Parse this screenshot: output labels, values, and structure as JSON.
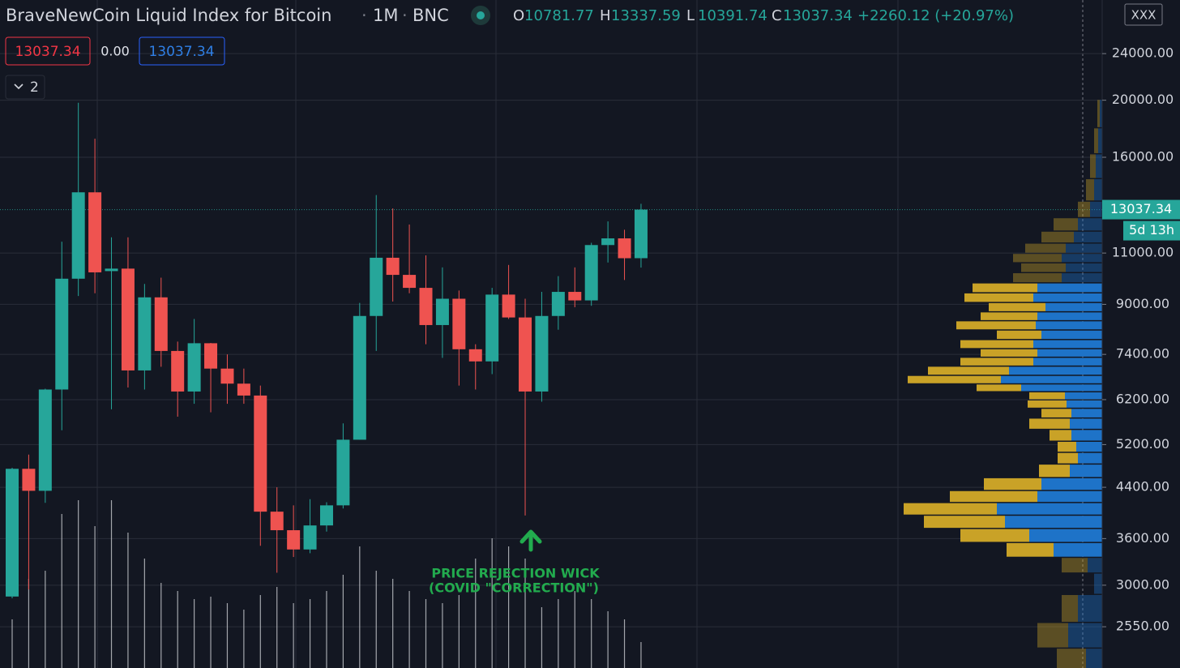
{
  "chart_data": {
    "type": "candlestick",
    "title": "BraveNewCoin Liquid Index for Bitcoin",
    "interval": "1M",
    "exchange": "BNC",
    "ohlc_legend": [
      {
        "label": "O",
        "value": 10781.77
      },
      {
        "label": "H",
        "value": 13337.59
      },
      {
        "label": "L",
        "value": 10391.74
      },
      {
        "label": "C",
        "value": 13037.34
      }
    ],
    "change": "+2260.12 (+20.97%)",
    "inputs": [
      13037.34,
      {
        "value": 0,
        "label": "0.00"
      },
      13037.34
    ],
    "collapsed_count": 2,
    "corner_label": "XXX",
    "last_price": 13037.34,
    "countdown": "5d 13h",
    "annotation": [
      "PRICE REJECTION WICK",
      "(COVID \"CORRECTION\")"
    ],
    "annotation_color": "#22ab4e",
    "yscale": "log",
    "ylim": [
      2170,
      29600
    ],
    "yticks": [
      {
        "value": 24000,
        "label": "24000.00"
      },
      {
        "value": 20000,
        "label": "20000.00"
      },
      {
        "value": 16000,
        "label": "16000.00"
      },
      {
        "value": 11000,
        "label": "11000.00"
      },
      {
        "value": 9000,
        "label": "9000.00"
      },
      {
        "value": 7400,
        "label": "7400.00"
      },
      {
        "value": 6200,
        "label": "6200.00"
      },
      {
        "value": 5200,
        "label": "5200.00"
      },
      {
        "value": 4400,
        "label": "4400.00"
      },
      {
        "value": 3600,
        "label": "3600.00"
      },
      {
        "value": 3000,
        "label": "3000.00"
      },
      {
        "value": 2550,
        "label": "2550.00"
      }
    ],
    "grid": true,
    "up_color": "#26a69a",
    "down_color": "#ef5350",
    "open": [
      2870,
      4730,
      4340,
      6450,
      9950,
      13950,
      10250,
      10350,
      6950,
      9250,
      7500,
      6400,
      7730,
      7000,
      6600,
      6300,
      4000,
      3720,
      3450,
      3790,
      4100,
      5300,
      8600,
      10800,
      10100,
      9600,
      8300,
      9200,
      7550,
      7200,
      9350,
      8550,
      6400,
      8600,
      9450,
      9140,
      11350,
      11650,
      10781.77
    ],
    "high": [
      4750,
      5000,
      6470,
      11500,
      19800,
      17200,
      11700,
      11700,
      9750,
      9990,
      7780,
      8500,
      7740,
      7400,
      7000,
      6550,
      4400,
      4100,
      4200,
      4150,
      5650,
      9050,
      13800,
      13100,
      12300,
      10900,
      10400,
      9500,
      7700,
      9600,
      10500,
      9200,
      9450,
      10050,
      10400,
      11450,
      12450,
      12050,
      13337.59
    ],
    "low": [
      2850,
      2950,
      4140,
      5500,
      9300,
      9400,
      5970,
      6500,
      6450,
      7050,
      5800,
      6100,
      5900,
      6100,
      6100,
      3500,
      3150,
      3350,
      3400,
      3700,
      4050,
      5300,
      7500,
      9100,
      9400,
      7700,
      7300,
      6550,
      6450,
      6850,
      8500,
      3940,
      6150,
      8150,
      8900,
      8950,
      10600,
      9900,
      10391.74
    ],
    "close": [
      4730,
      4340,
      6450,
      9950,
      13950,
      10200,
      10350,
      6950,
      9250,
      7500,
      6400,
      7730,
      7000,
      6600,
      6300,
      4000,
      3720,
      3450,
      3790,
      4100,
      5300,
      8600,
      10800,
      10100,
      9600,
      8300,
      9200,
      7550,
      7200,
      9350,
      8550,
      6400,
      8600,
      9450,
      9140,
      11350,
      11650,
      10780,
      13037.34
    ],
    "volume": [
      60,
      110,
      120,
      190,
      207,
      175,
      207,
      167,
      135,
      105,
      95,
      85,
      88,
      80,
      72,
      90,
      100,
      80,
      85,
      95,
      115,
      150,
      120,
      110,
      95,
      85,
      80,
      90,
      135,
      160,
      150,
      135,
      75,
      85,
      95,
      85,
      70,
      60,
      32
    ],
    "volume_color": "#c8cad0",
    "volume_profile": {
      "price": [
        2250,
        2450,
        2750,
        3050,
        3250,
        3450,
        3650,
        3850,
        4050,
        4250,
        4450,
        4700,
        4950,
        5150,
        5400,
        5650,
        5900,
        6100,
        6300,
        6500,
        6700,
        6950,
        7200,
        7450,
        7700,
        8000,
        8300,
        8600,
        8900,
        9250,
        9600,
        10000,
        10400,
        10800,
        11200,
        11700,
        12300,
        13000,
        14000,
        15500,
        17000,
        19000
      ],
      "up": [
        36,
        38,
        20,
        0,
        32,
        58,
        85,
        100,
        115,
        108,
        71,
        38,
        25,
        23,
        27,
        50,
        37,
        48,
        44,
        55,
        115,
        100,
        90,
        70,
        90,
        55,
        98,
        70,
        70,
        85,
        80,
        60,
        55,
        60,
        50,
        40,
        30,
        15,
        10,
        7,
        5,
        3
      ],
      "down": [
        20,
        42,
        30,
        10,
        18,
        60,
        90,
        120,
        130,
        80,
        75,
        40,
        30,
        32,
        38,
        40,
        38,
        44,
        46,
        100,
        125,
        115,
        85,
        80,
        85,
        75,
        82,
        80,
        70,
        85,
        80,
        50,
        45,
        50,
        45,
        35,
        30,
        15,
        10,
        8,
        5,
        3
      ],
      "up_color": "#c9a227",
      "down_color": "#1e73c8",
      "value_area": [
        3300,
        9800
      ]
    }
  }
}
